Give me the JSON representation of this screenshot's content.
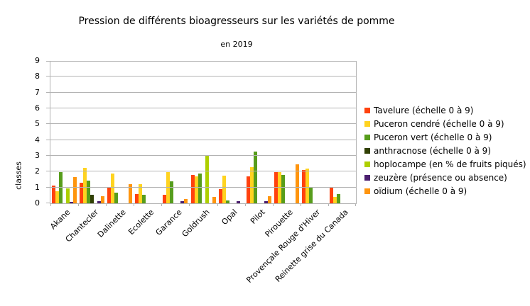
{
  "chart_data": {
    "type": "bar",
    "title": "Pression de différents bioagresseurs sur les variétés de pomme",
    "subtitle": "en 2019",
    "ylabel": "classes",
    "xlabel": "",
    "ylim": [
      0,
      9
    ],
    "ytick_step": 1,
    "grid": true,
    "legend_position": "right",
    "colors": {
      "grid": "#b3b3b3",
      "axis": "#b3b3b3",
      "text": "#000000",
      "background": "#ffffff"
    },
    "categories": [
      "Akane",
      "Chantecler",
      "Dalinette",
      "Ecolette",
      "Garance",
      "Goldrush",
      "Opal",
      "Pilot",
      "Pirouette",
      "Provençale Rouge d'Hiver",
      "Reinette grise du Canada"
    ],
    "series": [
      {
        "name": "Tavelure (échelle 0 à 9)",
        "color": "#ff420e",
        "values": [
          1.1,
          1.3,
          1.0,
          0.6,
          0.55,
          1.8,
          0.9,
          1.7,
          1.95,
          2.1,
          1.05
        ]
      },
      {
        "name": "Puceron cendré (échelle 0 à 9)",
        "color": "#ffd320",
        "values": [
          0.75,
          2.25,
          1.9,
          1.2,
          1.95,
          1.7,
          1.75,
          2.3,
          1.95,
          2.2,
          0.4
        ]
      },
      {
        "name": "Puceron vert (échelle 0 à 9)",
        "color": "#579d1c",
        "values": [
          1.95,
          1.45,
          0.65,
          0.55,
          1.4,
          1.9,
          0.2,
          3.25,
          1.8,
          1.0,
          0.6
        ]
      },
      {
        "name": "anthracnose (échelle 0 à 9)",
        "color": "#314004",
        "values": [
          0,
          0.55,
          0,
          0,
          0,
          0,
          0,
          0,
          0,
          0,
          0
        ]
      },
      {
        "name": "hoplocampe (en % de fruits piqués)",
        "color": "#aecf00",
        "values": [
          0.95,
          0,
          0,
          0,
          0,
          3.0,
          0,
          0,
          0,
          0,
          0
        ]
      },
      {
        "name": "zeuzère (présence ou absence)",
        "color": "#4b1f6f",
        "values": [
          0.1,
          0.15,
          0,
          0,
          0.15,
          0,
          0.15,
          0.15,
          0,
          0,
          0
        ]
      },
      {
        "name": "oïdium (échelle 0 à 9)",
        "color": "#ff950e",
        "values": [
          1.65,
          0.45,
          1.2,
          0,
          0.25,
          0.4,
          0,
          0.45,
          2.45,
          0,
          0
        ]
      }
    ]
  }
}
